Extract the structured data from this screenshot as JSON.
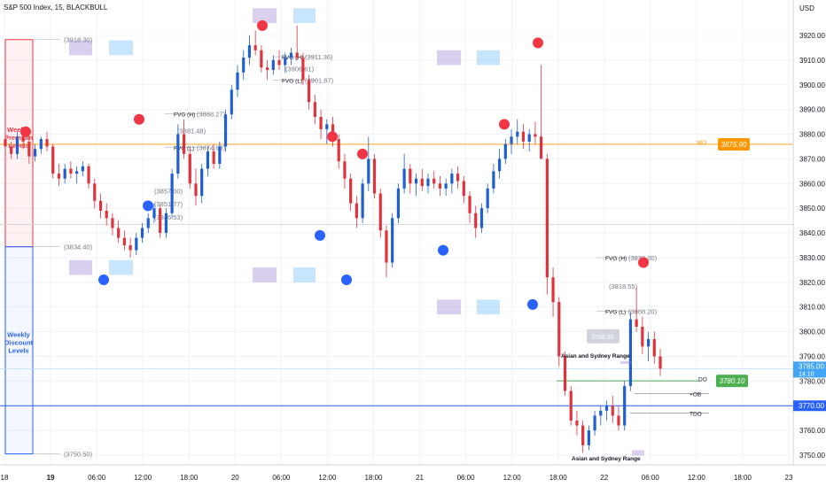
{
  "header": {
    "title": "S&P 500 Index, 15, BLACKBULL"
  },
  "colors": {
    "up": "#26a69a",
    "down": "#ef5350",
    "bull_body": "#1f5fd0",
    "bear_body": "#e0323b",
    "accent_orange": "#ff9800",
    "accent_green": "#4caf50",
    "accent_blue": "#2962ff",
    "premium_red": "#f23645",
    "discount_blue": "#2962ff"
  },
  "chart_data": {
    "type": "candlestick",
    "price_axis": {
      "unit": "USD",
      "min": 3745,
      "max": 3929,
      "ticks": [
        3920,
        3910,
        3900,
        3890,
        3880,
        3870,
        3860,
        3850,
        3840,
        3830,
        3820,
        3810,
        3800,
        3790,
        3780,
        3770,
        3760,
        3750
      ]
    },
    "time_axis": {
      "ticks": [
        "18",
        "19",
        "06:00",
        "12:00",
        "18:00",
        "20",
        "06:00",
        "12:00",
        "18:00",
        "21",
        "06:00",
        "12:00",
        "18:00",
        "22",
        "06:00",
        "12:00",
        "18:00",
        "23"
      ],
      "bold": [
        "19"
      ]
    },
    "current_price": {
      "label": "3785.00",
      "countdown": "14:10"
    },
    "price_tags": [
      {
        "label": "3875.90",
        "price": 3875.9,
        "color": "#ff9800"
      },
      {
        "label": "3780.10",
        "price": 3780.1,
        "color": "#4caf50"
      },
      {
        "label": "3770.00",
        "price": 3770.0,
        "color": "#2962ff"
      }
    ],
    "zones": [
      {
        "label": "Weekly Premium Levels",
        "top": 3918.3,
        "bottom": 3834.4,
        "color": "#f23645"
      },
      {
        "label": "Weekly Discount Levels",
        "top": 3834.4,
        "bottom": 3750.5,
        "color": "#2962ff"
      }
    ],
    "zone_prices": [
      "(3918.30)",
      "(3834.40)",
      "(3750.50)"
    ],
    "fvg_labels": [
      {
        "label": "FVG (H)",
        "value": "(3888.27)",
        "price": 3888.27
      },
      {
        "label": "",
        "value": "(3881.48)",
        "price": 3881.48
      },
      {
        "label": "FVG (L)",
        "value": "(3874.69)",
        "price": 3874.69
      },
      {
        "label": "",
        "value": "(3857.00)",
        "price": 3857.0
      },
      {
        "label": "",
        "value": "(3851.77)",
        "price": 3851.77
      },
      {
        "label": "",
        "value": "(3846.53)",
        "price": 3846.53
      },
      {
        "label": "FVG (H)",
        "value": "(3911.36)",
        "price": 3911.36
      },
      {
        "label": "",
        "value": "(3906.61)",
        "price": 3906.61
      },
      {
        "label": "FVG (L)",
        "value": "(3901.87)",
        "price": 3901.87
      },
      {
        "label": "FVG (H)",
        "value": "(3830.00)",
        "price": 3830.0
      },
      {
        "label": "",
        "value": "(3818.55)",
        "price": 3818.55
      },
      {
        "label": "FVG (L)",
        "value": "(3808.20)",
        "price": 3808.2
      }
    ],
    "annotations": [
      {
        "text": "WO",
        "price": 3877
      },
      {
        "text": "DO",
        "price": 3781
      },
      {
        "text": "+OB",
        "price": 3775
      },
      {
        "text": "TDO",
        "price": 3767
      },
      {
        "text": "3766.80",
        "price": 3766.8
      },
      {
        "text": "Asian and Sydney Range",
        "price": 3785
      },
      {
        "text": "Asian and Sydney Range",
        "price": 3749
      }
    ],
    "horizontal_levels": [
      3875.9,
      3843.4,
      3780.1,
      3770.0
    ],
    "swing_highs": [
      3881,
      3886,
      3924,
      3879,
      3872,
      3884,
      3917,
      3828
    ],
    "swing_lows": [
      3821,
      3851,
      3839,
      3821,
      3833,
      3811
    ],
    "series": [
      {
        "values": [
          [
            3878,
            3880,
            3872,
            3875
          ],
          [
            3875,
            3877,
            3870,
            3872
          ],
          [
            3872,
            3881,
            3870,
            3879
          ],
          [
            3879,
            3882,
            3874,
            3877
          ],
          [
            3877,
            3880,
            3868,
            3871
          ],
          [
            3871,
            3876,
            3869,
            3874
          ],
          [
            3874,
            3879,
            3872,
            3878
          ],
          [
            3878,
            3881,
            3873,
            3875
          ],
          [
            3875,
            3876,
            3862,
            3864
          ],
          [
            3864,
            3868,
            3859,
            3862
          ],
          [
            3862,
            3868,
            3860,
            3866
          ],
          [
            3866,
            3869,
            3862,
            3864
          ],
          [
            3864,
            3867,
            3860,
            3865
          ],
          [
            3865,
            3869,
            3863,
            3867
          ],
          [
            3867,
            3868,
            3858,
            3860
          ],
          [
            3860,
            3862,
            3850,
            3853
          ],
          [
            3853,
            3856,
            3846,
            3849
          ],
          [
            3849,
            3852,
            3843,
            3846
          ],
          [
            3846,
            3848,
            3839,
            3842
          ],
          [
            3842,
            3845,
            3836,
            3838
          ],
          [
            3838,
            3841,
            3833,
            3835
          ],
          [
            3835,
            3838,
            3830,
            3833
          ],
          [
            3833,
            3840,
            3831,
            3838
          ],
          [
            3838,
            3844,
            3836,
            3842
          ],
          [
            3842,
            3848,
            3840,
            3846
          ],
          [
            3846,
            3852,
            3844,
            3850
          ],
          [
            3850,
            3851,
            3838,
            3840
          ],
          [
            3840,
            3850,
            3838,
            3848
          ],
          [
            3848,
            3866,
            3846,
            3864
          ],
          [
            3864,
            3884,
            3862,
            3880
          ],
          [
            3880,
            3886,
            3870,
            3872
          ],
          [
            3872,
            3874,
            3858,
            3860
          ],
          [
            3860,
            3866,
            3851,
            3855
          ],
          [
            3855,
            3868,
            3852,
            3866
          ],
          [
            3866,
            3875,
            3863,
            3873
          ],
          [
            3873,
            3876,
            3866,
            3868
          ],
          [
            3868,
            3877,
            3866,
            3875
          ],
          [
            3875,
            3890,
            3873,
            3888
          ],
          [
            3888,
            3900,
            3886,
            3898
          ],
          [
            3898,
            3908,
            3895,
            3905
          ],
          [
            3905,
            3914,
            3902,
            3911
          ],
          [
            3911,
            3920,
            3908,
            3916
          ],
          [
            3916,
            3922,
            3912,
            3914
          ],
          [
            3914,
            3916,
            3905,
            3907
          ],
          [
            3907,
            3910,
            3902,
            3906
          ],
          [
            3906,
            3912,
            3904,
            3910
          ],
          [
            3910,
            3914,
            3906,
            3908
          ],
          [
            3908,
            3913,
            3905,
            3911
          ],
          [
            3911,
            3915,
            3908,
            3913
          ],
          [
            3913,
            3924,
            3910,
            3911
          ],
          [
            3911,
            3913,
            3900,
            3902
          ],
          [
            3902,
            3904,
            3890,
            3893
          ],
          [
            3893,
            3896,
            3884,
            3887
          ],
          [
            3887,
            3890,
            3878,
            3882
          ],
          [
            3882,
            3886,
            3876,
            3884
          ],
          [
            3884,
            3887,
            3875,
            3878
          ],
          [
            3878,
            3880,
            3866,
            3869
          ],
          [
            3869,
            3872,
            3858,
            3862
          ],
          [
            3862,
            3864,
            3849,
            3852
          ],
          [
            3852,
            3855,
            3842,
            3846
          ],
          [
            3846,
            3862,
            3844,
            3860
          ],
          [
            3860,
            3879,
            3857,
            3870
          ],
          [
            3870,
            3872,
            3854,
            3856
          ],
          [
            3856,
            3858,
            3838,
            3841
          ],
          [
            3841,
            3843,
            3822,
            3828
          ],
          [
            3828,
            3848,
            3826,
            3846
          ],
          [
            3846,
            3860,
            3844,
            3858
          ],
          [
            3858,
            3872,
            3856,
            3866
          ],
          [
            3866,
            3868,
            3856,
            3860
          ],
          [
            3860,
            3864,
            3855,
            3862
          ],
          [
            3862,
            3866,
            3857,
            3859
          ],
          [
            3859,
            3864,
            3856,
            3862
          ],
          [
            3862,
            3865,
            3858,
            3860
          ],
          [
            3860,
            3863,
            3855,
            3858
          ],
          [
            3858,
            3862,
            3855,
            3860
          ],
          [
            3860,
            3866,
            3856,
            3864
          ],
          [
            3864,
            3867,
            3858,
            3861
          ],
          [
            3861,
            3863,
            3852,
            3855
          ],
          [
            3855,
            3857,
            3844,
            3848
          ],
          [
            3848,
            3851,
            3838,
            3842
          ],
          [
            3842,
            3852,
            3840,
            3850
          ],
          [
            3850,
            3860,
            3848,
            3858
          ],
          [
            3858,
            3868,
            3856,
            3865
          ],
          [
            3865,
            3874,
            3862,
            3870
          ],
          [
            3870,
            3878,
            3868,
            3876
          ],
          [
            3876,
            3882,
            3872,
            3879
          ],
          [
            3879,
            3886,
            3876,
            3881
          ],
          [
            3881,
            3884,
            3874,
            3877
          ],
          [
            3877,
            3882,
            3873,
            3880
          ],
          [
            3880,
            3885,
            3876,
            3879
          ],
          [
            3879,
            3908,
            3874,
            3870
          ],
          [
            3870,
            3872,
            3815,
            3822
          ],
          [
            3822,
            3826,
            3806,
            3812
          ],
          [
            3812,
            3814,
            3786,
            3790
          ],
          [
            3790,
            3792,
            3774,
            3776
          ],
          [
            3776,
            3778,
            3762,
            3764
          ],
          [
            3764,
            3768,
            3758,
            3762
          ],
          [
            3762,
            3764,
            3751,
            3754
          ],
          [
            3754,
            3762,
            3752,
            3760
          ],
          [
            3760,
            3768,
            3758,
            3766
          ],
          [
            3766,
            3770,
            3762,
            3768
          ],
          [
            3768,
            3772,
            3764,
            3770
          ],
          [
            3770,
            3774,
            3763,
            3766
          ],
          [
            3766,
            3770,
            3760,
            3762
          ],
          [
            3762,
            3780,
            3760,
            3778
          ],
          [
            3778,
            3808,
            3776,
            3805
          ],
          [
            3805,
            3818,
            3800,
            3802
          ],
          [
            3802,
            3806,
            3791,
            3794
          ],
          [
            3794,
            3800,
            3788,
            3797
          ],
          [
            3797,
            3800,
            3787,
            3790
          ],
          [
            3790,
            3793,
            3782,
            3785
          ]
        ]
      }
    ]
  }
}
